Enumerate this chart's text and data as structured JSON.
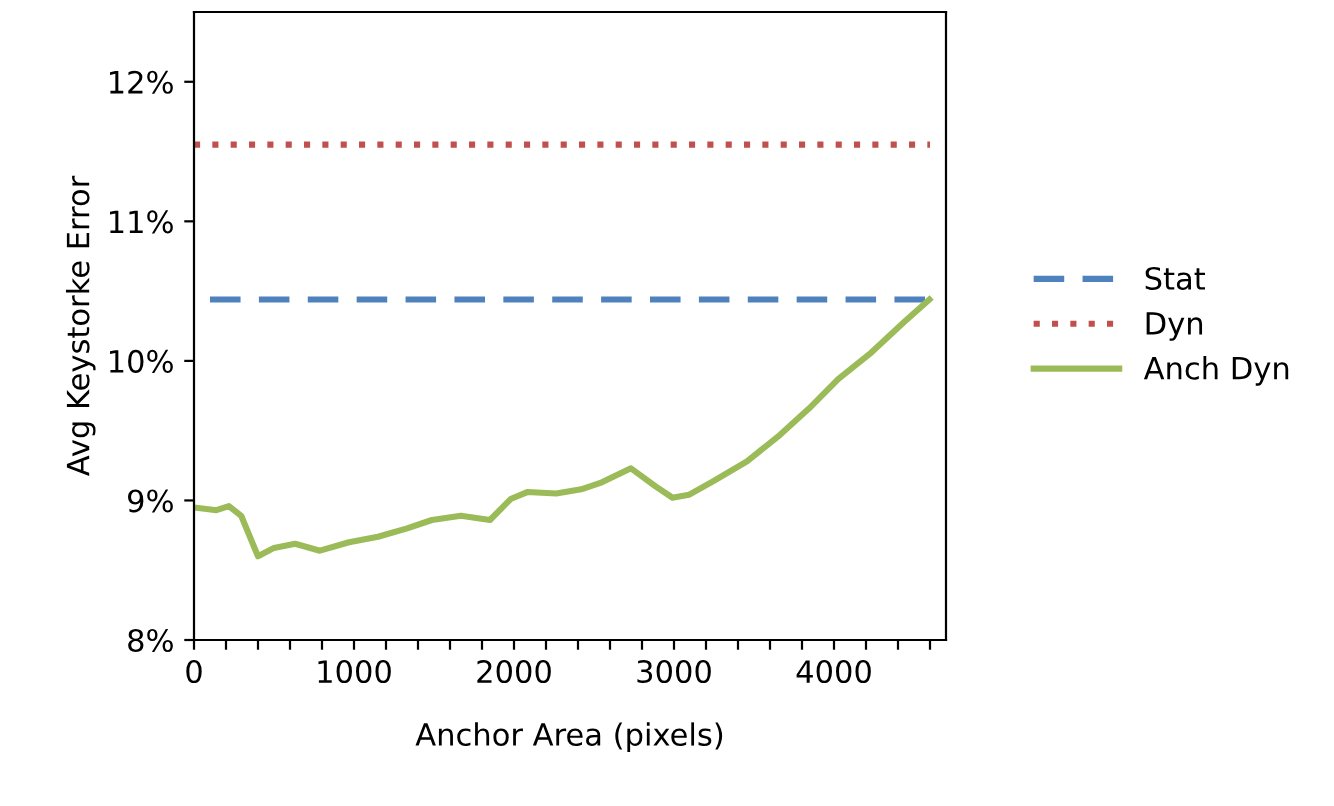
{
  "chart_data": {
    "type": "line",
    "xlabel": "Anchor Area (pixels)",
    "ylabel": "Avg Keystorke Error",
    "xlim": [
      0,
      4700
    ],
    "xticks": [
      0,
      {
        "value": 200,
        "label": null
      },
      {
        "value": 400,
        "label": null
      },
      {
        "value": 600,
        "label": null
      },
      {
        "value": 800,
        "label": null
      },
      1000,
      {
        "value": 1200,
        "label": null
      },
      {
        "value": 1400,
        "label": null
      },
      {
        "value": 1600,
        "label": null
      },
      {
        "value": 1800,
        "label": null
      },
      2000,
      {
        "value": 2200,
        "label": null
      },
      {
        "value": 2400,
        "label": null
      },
      {
        "value": 2600,
        "label": null
      },
      {
        "value": 2800,
        "label": null
      },
      3000,
      {
        "value": 3200,
        "label": null
      },
      {
        "value": 3400,
        "label": null
      },
      {
        "value": 3600,
        "label": null
      },
      {
        "value": 3800,
        "label": null
      },
      4000,
      {
        "value": 4200,
        "label": null
      },
      {
        "value": 4400,
        "label": null
      },
      {
        "value": 4600,
        "label": null
      }
    ],
    "ylim": [
      8,
      12.5
    ],
    "yticks": [
      {
        "value": 8,
        "label": "8%"
      },
      {
        "value": 9,
        "label": "9%"
      },
      {
        "value": 10,
        "label": "10%"
      },
      {
        "value": 11,
        "label": "11%"
      },
      {
        "value": 12,
        "label": "12%"
      }
    ],
    "grid": false,
    "legend": "right",
    "marker": "none",
    "series": [
      {
        "name": "Stat",
        "color": "#4f81bd",
        "line_style": "dashed",
        "x": [
          100,
          4600
        ],
        "values": [
          10.44,
          10.44
        ]
      },
      {
        "name": "Dyn",
        "color": "#c0504d",
        "line_style": "dotted",
        "x": [
          0,
          4600
        ],
        "values": [
          11.55,
          11.55
        ]
      },
      {
        "name": "Anch Dyn",
        "color": "#9bbb59",
        "line_style": "solid",
        "x": [
          0,
          140,
          218,
          295,
          400,
          500,
          632,
          787,
          969,
          1150,
          1332,
          1487,
          1668,
          1850,
          1979,
          2083,
          2264,
          2420,
          2549,
          2731,
          2886,
          2990,
          3093,
          3249,
          3456,
          3663,
          3845,
          4026,
          4233,
          4440,
          4596
        ],
        "values": [
          8.95,
          8.93,
          8.96,
          8.89,
          8.6,
          8.66,
          8.69,
          8.64,
          8.7,
          8.74,
          8.8,
          8.86,
          8.89,
          8.86,
          9.01,
          9.06,
          9.05,
          9.08,
          9.13,
          9.23,
          9.1,
          9.02,
          9.04,
          9.14,
          9.28,
          9.47,
          9.66,
          9.87,
          10.06,
          10.28,
          10.44
        ]
      }
    ]
  }
}
